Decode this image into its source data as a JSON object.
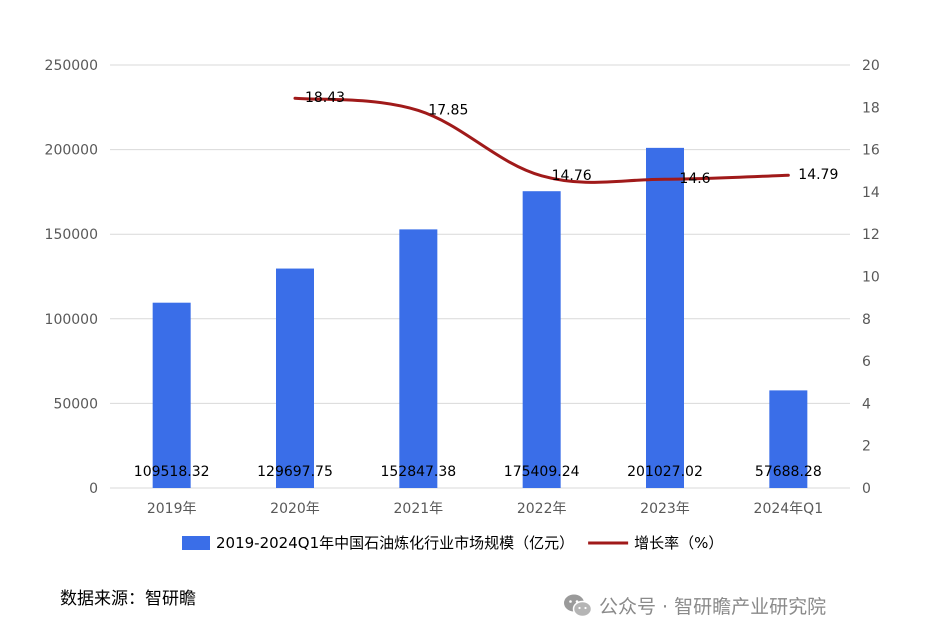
{
  "chart_data": {
    "type": "bar",
    "categories": [
      "2019年",
      "2020年",
      "2021年",
      "2022年",
      "2023年",
      "2024年Q1"
    ],
    "series": [
      {
        "name": "2019-2024Q1年中国石油炼化行业市场规模（亿元）",
        "type": "bar",
        "axis": "left",
        "values": [
          109518.32,
          129697.75,
          152847.38,
          175409.24,
          201027.02,
          57688.28
        ],
        "labels": [
          "109518.32",
          "129697.75",
          "152847.38",
          "175409.24",
          "201027.02",
          "57688.28"
        ]
      },
      {
        "name": "增长率（%）",
        "type": "line",
        "axis": "right",
        "values": [
          null,
          18.43,
          17.85,
          14.76,
          14.6,
          14.79
        ],
        "labels": [
          "",
          "18.43",
          "17.85",
          "14.76",
          "14.6",
          "14.79"
        ]
      }
    ],
    "y_left": {
      "min": 0,
      "max": 250000,
      "ticks": [
        "0",
        "50000",
        "100000",
        "150000",
        "200000",
        "250000"
      ]
    },
    "y_right": {
      "min": 0,
      "max": 20,
      "ticks": [
        "0",
        "2",
        "4",
        "6",
        "8",
        "10",
        "12",
        "14",
        "16",
        "18",
        "20"
      ]
    },
    "grid": true,
    "legend_position": "bottom",
    "colors": {
      "bar": "#3a6ee8",
      "line": "#a01a1a",
      "grid": "#d9d9d9",
      "tick": "#595959"
    }
  },
  "source_text": "数据来源：智研瞻",
  "watermark": {
    "icon": "wechat-icon",
    "text": "公众号 · 智研瞻产业研究院"
  }
}
